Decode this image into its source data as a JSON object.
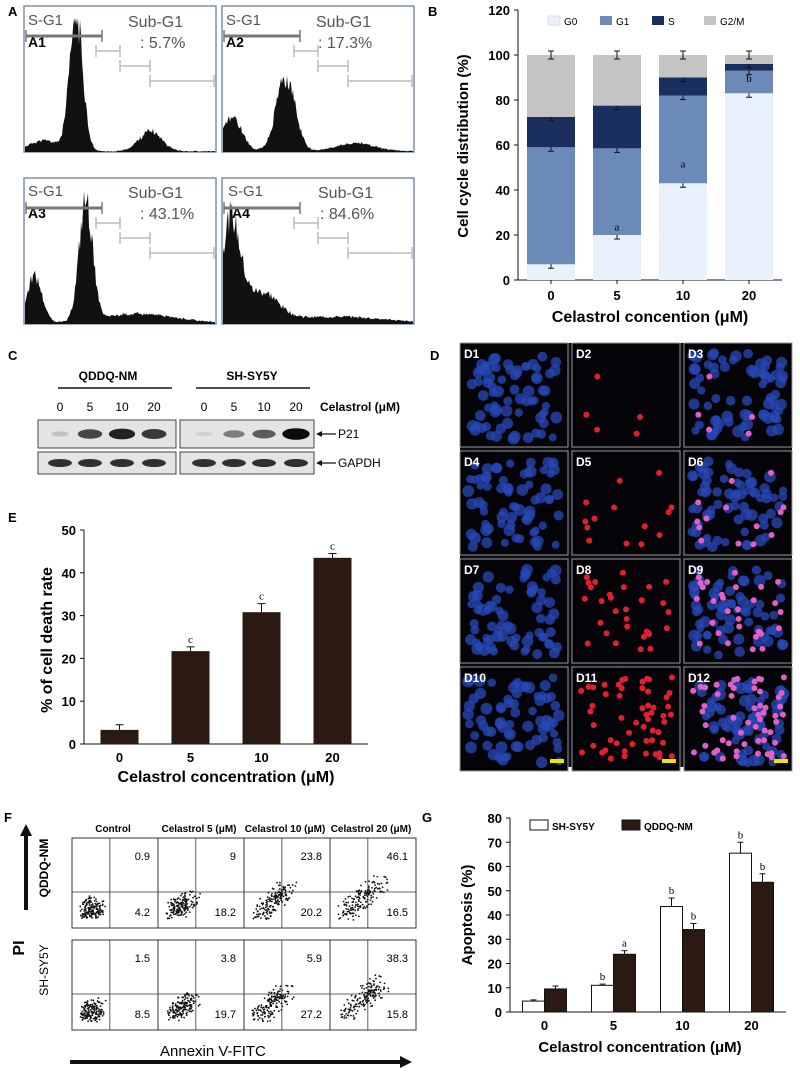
{
  "panels": {
    "A": "A",
    "B": "B",
    "C": "C",
    "D": "D",
    "E": "E",
    "F": "F",
    "G": "G"
  },
  "panel_a": {
    "insets": [
      {
        "id": "A1",
        "sg1": "S-G1",
        "sub": "Sub-G1",
        "pct": ": 5.7%"
      },
      {
        "id": "A2",
        "sg1": "S-G1",
        "sub": "Sub-G1",
        "pct": ": 17.3%"
      },
      {
        "id": "A3",
        "sg1": "S-G1",
        "sub": "Sub-G1",
        "pct": ": 43.1%"
      },
      {
        "id": "A4",
        "sg1": "S-G1",
        "sub": "Sub-G1",
        "pct": ": 84.6%"
      }
    ]
  },
  "panel_c": {
    "groups": [
      "QDDQ-NM",
      "SH-SY5Y"
    ],
    "lanes": [
      "0",
      "5",
      "10",
      "20",
      "0",
      "5",
      "10",
      "20"
    ],
    "treatment": "Celastrol (μM)",
    "bands": [
      "P21",
      "GAPDH"
    ],
    "p21_intensity": [
      0.15,
      0.7,
      0.85,
      0.75,
      0.08,
      0.45,
      0.6,
      0.95
    ]
  },
  "panel_d": {
    "labels": [
      "D1",
      "D2",
      "D3",
      "D4",
      "D5",
      "D6",
      "D7",
      "D8",
      "D9",
      "D10",
      "D11",
      "D12"
    ]
  },
  "panel_f": {
    "columns": [
      "Control",
      "Celastrol 5 (μM)",
      "Celastrol 10 (μM)",
      "Celastrol 20 (μM)"
    ],
    "rows": [
      "QDDQ-NM",
      "SH-SY5Y"
    ],
    "ylabel": "PI",
    "xlabel": "Annexin V-FITC",
    "values": [
      [
        {
          "ur": "0.9",
          "lr": "4.2"
        },
        {
          "ur": "9",
          "lr": "18.2"
        },
        {
          "ur": "23.8",
          "lr": "20.2"
        },
        {
          "ur": "46.1",
          "lr": "16.5"
        }
      ],
      [
        {
          "ur": "1.5",
          "lr": "8.5"
        },
        {
          "ur": "3.8",
          "lr": "19.7"
        },
        {
          "ur": "5.9",
          "lr": "27.2"
        },
        {
          "ur": "38.3",
          "lr": "15.8"
        }
      ]
    ]
  },
  "chart_data": [
    {
      "panel": "B",
      "type": "bar",
      "stacked": true,
      "categories": [
        "0",
        "5",
        "10",
        "20"
      ],
      "series": [
        {
          "name": "G0",
          "color": "#e8f1fc",
          "values": [
            7,
            20,
            43,
            83
          ]
        },
        {
          "name": "G1",
          "color": "#6c8ab8",
          "values": [
            52,
            38.5,
            39,
            10
          ]
        },
        {
          "name": "S",
          "color": "#1b2f5e",
          "values": [
            13.5,
            19,
            8,
            3
          ]
        },
        {
          "name": "G2/M",
          "color": "#c4c4c4",
          "values": [
            27.5,
            22.5,
            10,
            4
          ]
        }
      ],
      "annotations": [
        {
          "category": "5",
          "text": "a"
        },
        {
          "category": "10",
          "text": "a"
        },
        {
          "category": "20",
          "text": "b"
        }
      ],
      "ylabel": "Cell cycle distribution (%)",
      "xlabel": "Celastrol concention (μM)",
      "ylim": [
        0,
        120
      ],
      "yticks": [
        "0",
        "20",
        "40",
        "60",
        "80",
        "100",
        "120"
      ],
      "legend": "top"
    },
    {
      "panel": "E",
      "type": "bar",
      "categories": [
        "0",
        "5",
        "10",
        "20"
      ],
      "values": [
        3.3,
        21.7,
        30.8,
        43.5
      ],
      "errors": [
        1.2,
        1.0,
        2.0,
        1.0
      ],
      "color": "#2a1a12",
      "annotations": [
        "",
        "c",
        "c",
        "c"
      ],
      "ylabel": "% of cell death rate",
      "xlabel": "Celastrol concentration (μM)",
      "ylim": [
        0,
        50
      ],
      "yticks": [
        "0",
        "10",
        "20",
        "30",
        "40",
        "50"
      ]
    },
    {
      "panel": "G",
      "type": "bar",
      "categories": [
        "0",
        "5",
        "10",
        "20"
      ],
      "series": [
        {
          "name": "SH-SY5Y",
          "color": "#ffffff",
          "values": [
            4.5,
            11,
            43.5,
            65.5
          ],
          "errors": [
            0.5,
            0.5,
            3.5,
            4.5
          ],
          "annot": [
            "",
            "b",
            "b",
            "b"
          ]
        },
        {
          "name": "QDDQ-NM",
          "color": "#2a1a12",
          "values": [
            9.5,
            23.8,
            34,
            53.5
          ],
          "errors": [
            1.2,
            1.5,
            2.5,
            3.5
          ],
          "annot": [
            "",
            "a",
            "b",
            "b"
          ]
        }
      ],
      "ylabel": "Apoptosis (%)",
      "xlabel": "Celastrol concentration (μM)",
      "ylim": [
        0,
        80
      ],
      "yticks": [
        "0",
        "10",
        "20",
        "30",
        "40",
        "50",
        "60",
        "70",
        "80"
      ],
      "legend": "top"
    }
  ]
}
